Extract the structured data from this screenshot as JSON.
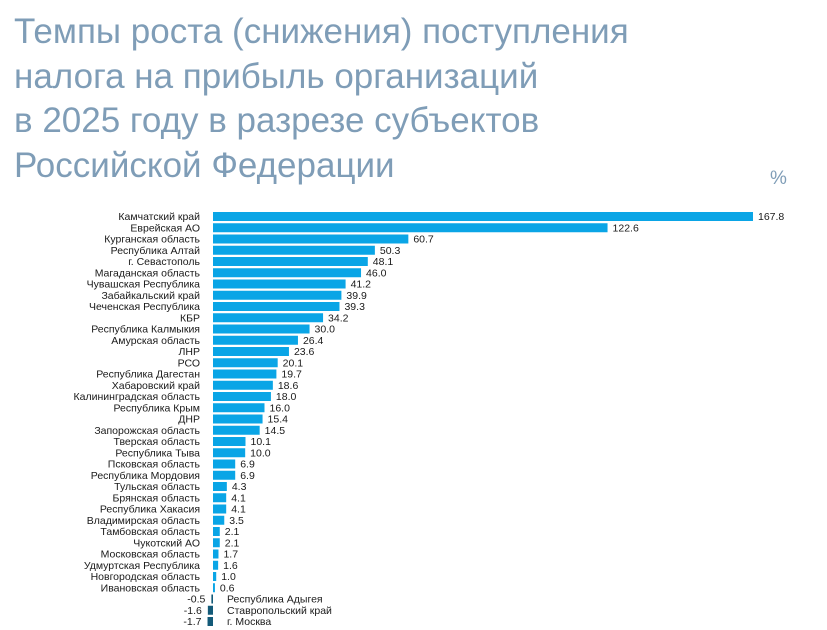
{
  "title": {
    "lines": [
      "Темпы роста (снижения) поступления",
      "налога на прибыль организаций",
      "в 2025 году в разрезе субъектов",
      "Российской Федерации"
    ]
  },
  "unit": "%",
  "colors": {
    "title": "#7f9db7",
    "positive": "#0aa5e6",
    "negative": "#135a78",
    "text": "#1a1a1a"
  },
  "chart_data": {
    "type": "bar",
    "orientation": "horizontal",
    "title": "Темпы роста (снижения) поступления налога на прибыль организаций в 2025 году в разрезе субъектов Российской Федерации",
    "unit": "%",
    "categories": [
      "Камчатский край",
      "Еврейская АО",
      "Курганская область",
      "Республика Алтай",
      "г. Севастополь",
      "Магаданская область",
      "Чувашская Республика",
      "Забайкальский край",
      "Чеченская Республика",
      "КБР",
      "Республика Калмыкия",
      "Амурская область",
      "ЛНР",
      "РСО",
      "Республика Дагестан",
      "Хабаровский край",
      "Калининградская область",
      "Республика Крым",
      "ДНР",
      "Запорожская область",
      "Тверская область",
      "Республика Тыва",
      "Псковская область",
      "Республика Мордовия",
      "Тульская область",
      "Брянская область",
      "Республика Хакасия",
      "Владимирская область",
      "Тамбовская область",
      "Чукотский АО",
      "Московская область",
      "Удмуртская Республика",
      "Новгородская область",
      "Ивановская область",
      "Республика Адыгея",
      "Ставропольский край",
      "г. Москва"
    ],
    "values": [
      167.8,
      122.6,
      60.7,
      50.3,
      48.1,
      46.0,
      41.2,
      39.9,
      39.3,
      34.2,
      30.0,
      26.4,
      23.6,
      20.1,
      19.7,
      18.6,
      18.0,
      16.0,
      15.4,
      14.5,
      10.1,
      10.0,
      6.9,
      6.9,
      4.3,
      4.1,
      4.1,
      3.5,
      2.1,
      2.1,
      1.7,
      1.6,
      1.0,
      0.6,
      -0.5,
      -1.6,
      -1.7
    ],
    "value_labels": [
      "167.8",
      "122.6",
      "60.7",
      "50.3",
      "48.1",
      "46.0",
      "41.2",
      "39.9",
      "39.3",
      "34.2",
      "30.0",
      "26.4",
      "23.6",
      "20.1",
      "19.7",
      "18.6",
      "18.0",
      "16.0",
      "15.4",
      "14.5",
      "10.1",
      "10.0",
      "6.9",
      "6.9",
      "4.3",
      "4.1",
      "4.1",
      "3.5",
      "2.1",
      "2.1",
      "1.7",
      "1.6",
      "1.0",
      "0.6",
      "-0.5",
      "-1.6",
      "-1.7"
    ],
    "xlim": [
      0,
      170
    ],
    "grid": false,
    "legend": "none"
  }
}
